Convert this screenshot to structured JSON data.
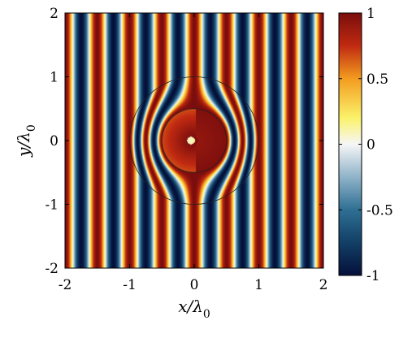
{
  "chart_data": {
    "type": "heatmap",
    "title": "",
    "xlabel": {
      "var": "x/λ",
      "sub": "0"
    },
    "ylabel": {
      "var": "y/λ",
      "sub": "0"
    },
    "xlim": [
      -2,
      2
    ],
    "ylim": [
      -2,
      2
    ],
    "x_ticks": [
      -2,
      -1,
      0,
      1,
      2
    ],
    "y_ticks": [
      -2,
      -1,
      0,
      1,
      2
    ],
    "x_tick_labels": [
      "-2",
      "-1",
      "0",
      "1",
      "2"
    ],
    "y_tick_labels": [
      "-2",
      "-1",
      "0",
      "1",
      "2"
    ],
    "field": {
      "description_kind": "plane wave with cloak",
      "wavelength": 1,
      "stripe_period_in_x": 0.5,
      "cloak_outer_radius": 1.0,
      "cloak_inner_radius": 0.5,
      "hot_spot_center": [
        -0.05,
        0.0
      ],
      "hot_spot_radius": 0.22
    },
    "colorbar": {
      "range": [
        -1,
        1
      ],
      "ticks": [
        1,
        0.5,
        0,
        -0.5,
        -1
      ],
      "tick_labels": [
        "1",
        "0.5",
        "0",
        "-0.5",
        "-1"
      ],
      "colormap_stops": [
        {
          "v": -1.0,
          "color": "#05103a"
        },
        {
          "v": -0.75,
          "color": "#123f66"
        },
        {
          "v": -0.5,
          "color": "#2f6f93"
        },
        {
          "v": -0.25,
          "color": "#8fb3c9"
        },
        {
          "v": 0.0,
          "color": "#f6f6f6"
        },
        {
          "v": 0.2,
          "color": "#fbf26a"
        },
        {
          "v": 0.5,
          "color": "#f39c1f"
        },
        {
          "v": 0.75,
          "color": "#c02a11"
        },
        {
          "v": 1.0,
          "color": "#7a0d0d"
        }
      ]
    }
  }
}
